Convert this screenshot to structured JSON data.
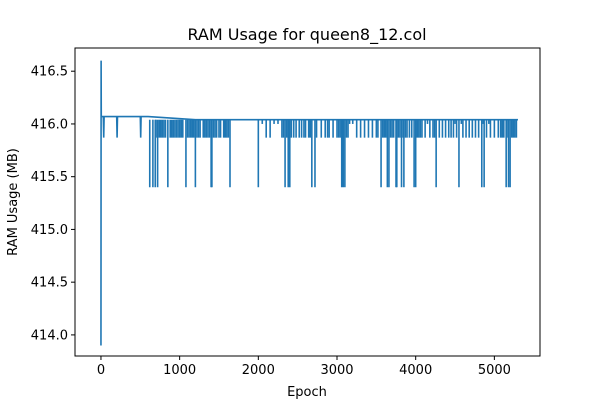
{
  "chart_data": {
    "type": "line",
    "title": "RAM Usage for queen8_12.col",
    "xlabel": "Epoch",
    "ylabel": "RAM Usage (MB)",
    "xlim": [
      -330,
      5580
    ],
    "ylim": [
      413.8,
      416.72
    ],
    "xticks": [
      0,
      1000,
      2000,
      3000,
      4000,
      5000
    ],
    "yticks": [
      414.0,
      414.5,
      415.0,
      415.5,
      416.0,
      416.5
    ],
    "xtick_labels": [
      "0",
      "1000",
      "2000",
      "3000",
      "4000",
      "5000"
    ],
    "ytick_labels": [
      "414.0",
      "414.5",
      "415.0",
      "415.5",
      "416.0",
      "416.5"
    ],
    "grid": false,
    "series": [
      {
        "color": "#1f77b4",
        "baseline": 416.04,
        "x": [
          0,
          2,
          4,
          6,
          10,
          30,
          35,
          40,
          45,
          200,
          205,
          210,
          500,
          505,
          510,
          600,
          1200,
          2500,
          3600,
          4100,
          5300
        ],
        "y": [
          413.9,
          416.6,
          416.07,
          416.07,
          416.07,
          416.07,
          415.87,
          416.07,
          416.07,
          416.07,
          415.87,
          416.07,
          416.07,
          415.87,
          416.07,
          416.07,
          416.04,
          416.04,
          416.04,
          416.04,
          416.04
        ],
        "dips_415_4": [
          620,
          660,
          690,
          720,
          850,
          1080,
          1200,
          1400,
          1410,
          1640,
          2000,
          2340,
          2380,
          2400,
          2680,
          2720,
          3060,
          3080,
          3100,
          3560,
          3640,
          3660,
          3750,
          3760,
          3820,
          3850,
          3980,
          4000,
          4260,
          4550,
          4840,
          4870,
          5150,
          5180,
          5200
        ],
        "dips_415_87": [
          700,
          740,
          760,
          780,
          800,
          820,
          880,
          900,
          920,
          940,
          960,
          980,
          1000,
          1020,
          1040,
          1100,
          1120,
          1140,
          1160,
          1180,
          1220,
          1240,
          1260,
          1300,
          1320,
          1340,
          1360,
          1380,
          1430,
          1450,
          1470,
          1500,
          1520,
          1560,
          1580,
          1600,
          1620,
          2100,
          2150,
          2300,
          2320,
          2360,
          2420,
          2450,
          2480,
          2520,
          2550,
          2580,
          2600,
          2640,
          2660,
          2740,
          2800,
          2850,
          2880,
          2900,
          2950,
          3000,
          3020,
          3040,
          3120,
          3140,
          3250,
          3300,
          3350,
          3400,
          3450,
          3500,
          3520,
          3580,
          3600,
          3620,
          3680,
          3700,
          3720,
          3780,
          3800,
          3840,
          3870,
          3890,
          3920,
          3950,
          4020,
          4040,
          4060,
          4080,
          4120,
          4180,
          4220,
          4240,
          4300,
          4340,
          4380,
          4420,
          4450,
          4480,
          4520,
          4600,
          4640,
          4680,
          4720,
          4760,
          4800,
          4900,
          4950,
          5000,
          5050,
          5080,
          5100,
          5120,
          5160,
          5220,
          5240,
          5260,
          5280
        ],
        "dips_416_0": [
          2050,
          2200,
          2250,
          3160,
          3200,
          4150,
          4500,
          4580,
          4860,
          4930
        ]
      }
    ]
  }
}
